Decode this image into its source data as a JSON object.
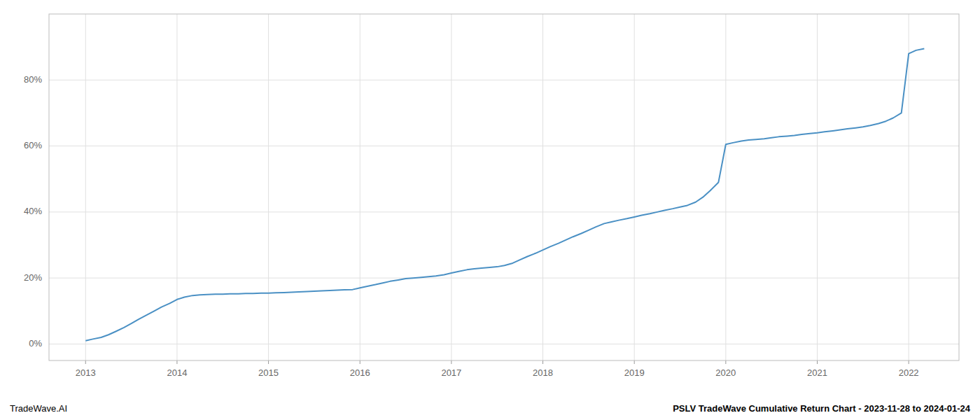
{
  "chart_data": {
    "type": "line",
    "x": [
      2013.0,
      2013.08,
      2013.17,
      2013.25,
      2013.33,
      2013.42,
      2013.5,
      2013.58,
      2013.67,
      2013.75,
      2013.83,
      2013.92,
      2014.0,
      2014.08,
      2014.17,
      2014.25,
      2014.33,
      2014.42,
      2014.5,
      2014.58,
      2014.67,
      2014.75,
      2014.83,
      2014.92,
      2015.0,
      2015.08,
      2015.17,
      2015.25,
      2015.33,
      2015.42,
      2015.5,
      2015.58,
      2015.67,
      2015.75,
      2015.83,
      2015.92,
      2016.0,
      2016.08,
      2016.17,
      2016.25,
      2016.33,
      2016.42,
      2016.5,
      2016.58,
      2016.67,
      2016.75,
      2016.83,
      2016.92,
      2017.0,
      2017.08,
      2017.17,
      2017.25,
      2017.33,
      2017.42,
      2017.5,
      2017.58,
      2017.67,
      2017.75,
      2017.83,
      2017.92,
      2018.0,
      2018.08,
      2018.17,
      2018.25,
      2018.33,
      2018.42,
      2018.5,
      2018.58,
      2018.67,
      2018.75,
      2018.83,
      2018.92,
      2019.0,
      2019.08,
      2019.17,
      2019.25,
      2019.33,
      2019.42,
      2019.5,
      2019.58,
      2019.67,
      2019.75,
      2019.83,
      2019.92,
      2020.0,
      2020.08,
      2020.17,
      2020.25,
      2020.33,
      2020.42,
      2020.5,
      2020.58,
      2020.67,
      2020.75,
      2020.83,
      2020.92,
      2021.0,
      2021.08,
      2021.17,
      2021.25,
      2021.33,
      2021.42,
      2021.5,
      2021.58,
      2021.67,
      2021.75,
      2021.83,
      2021.92,
      2022.0,
      2022.08,
      2022.17
    ],
    "values": [
      1.0,
      1.5,
      2.0,
      2.8,
      3.8,
      5.0,
      6.2,
      7.5,
      8.8,
      10.0,
      11.2,
      12.3,
      13.5,
      14.2,
      14.7,
      14.9,
      15.0,
      15.1,
      15.1,
      15.2,
      15.2,
      15.3,
      15.3,
      15.4,
      15.4,
      15.5,
      15.6,
      15.7,
      15.8,
      15.9,
      16.0,
      16.1,
      16.2,
      16.3,
      16.4,
      16.5,
      17.0,
      17.5,
      18.0,
      18.5,
      19.0,
      19.4,
      19.8,
      20.0,
      20.2,
      20.4,
      20.6,
      21.0,
      21.5,
      22.0,
      22.5,
      22.8,
      23.0,
      23.2,
      23.4,
      23.8,
      24.5,
      25.5,
      26.5,
      27.5,
      28.5,
      29.5,
      30.5,
      31.5,
      32.5,
      33.5,
      34.5,
      35.5,
      36.5,
      37.0,
      37.5,
      38.0,
      38.5,
      39.0,
      39.5,
      40.0,
      40.5,
      41.0,
      41.5,
      42.0,
      43.0,
      44.5,
      46.5,
      49.0,
      60.5,
      61.0,
      61.5,
      61.8,
      62.0,
      62.2,
      62.5,
      62.8,
      63.0,
      63.2,
      63.5,
      63.8,
      64.0,
      64.3,
      64.6,
      64.9,
      65.2,
      65.5,
      65.8,
      66.2,
      66.8,
      67.5,
      68.5,
      70.0,
      88.0,
      89.0,
      89.5
    ],
    "color": "#4a90c4",
    "xlim": [
      2012.6,
      2022.55
    ],
    "xticks": [
      2013,
      2014,
      2015,
      2016,
      2017,
      2018,
      2019,
      2020,
      2021,
      2022
    ],
    "ylim": [
      -5,
      100
    ],
    "yticks": [
      {
        "value": 0,
        "label": "0%"
      },
      {
        "value": 20,
        "label": "20%"
      },
      {
        "value": 40,
        "label": "40%"
      },
      {
        "value": 60,
        "label": "60%"
      },
      {
        "value": 80,
        "label": "80%"
      }
    ],
    "grid": true,
    "annotations": [
      "TradeWave.AI",
      "PSLV TradeWave Cumulative Return Chart - 2023-11-28 to 2024-01-24"
    ]
  }
}
